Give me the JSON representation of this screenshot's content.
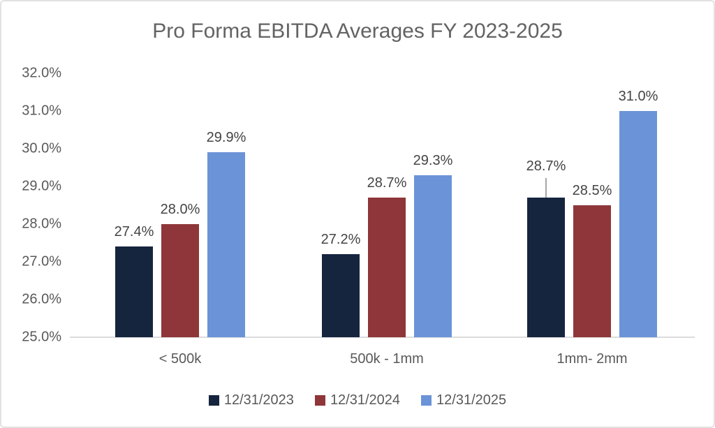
{
  "chart_data": {
    "type": "bar",
    "title": "Pro Forma EBITDA Averages FY 2023-2025",
    "categories": [
      "< 500k",
      "500k - 1mm",
      "1mm- 2mm"
    ],
    "series": [
      {
        "name": "12/31/2023",
        "color": "#16253E",
        "values": [
          27.4,
          27.2,
          28.7
        ],
        "value_labels": [
          "27.4%",
          "27.2%",
          "28.7%"
        ]
      },
      {
        "name": "12/31/2024",
        "color": "#8E3639",
        "values": [
          28.0,
          28.7,
          28.5
        ],
        "value_labels": [
          "28.0%",
          "28.7%",
          "28.5%"
        ]
      },
      {
        "name": "12/31/2025",
        "color": "#6B93D8",
        "values": [
          29.9,
          29.3,
          31.0
        ],
        "value_labels": [
          "29.9%",
          "29.3%",
          "31.0%"
        ]
      }
    ],
    "xlabel": "",
    "ylabel": "",
    "ylim": [
      25.0,
      32.0
    ],
    "ytick_step": 1.0,
    "ytick_labels": [
      "25.0%",
      "26.0%",
      "27.0%",
      "28.0%",
      "29.0%",
      "30.0%",
      "31.0%",
      "32.0%"
    ],
    "grid": false,
    "legend_position": "bottom",
    "data_label_leader_lines": [
      {
        "series_index": 0,
        "category_index": 2
      }
    ]
  },
  "colors": {
    "background": "#FFFFFF",
    "frame_border": "#E2E2E2",
    "title_text": "#636363",
    "axis_text": "#595959",
    "data_label_text": "#444444",
    "axis_line": "#DCDCDC",
    "leader_line": "#A6A6A6"
  }
}
